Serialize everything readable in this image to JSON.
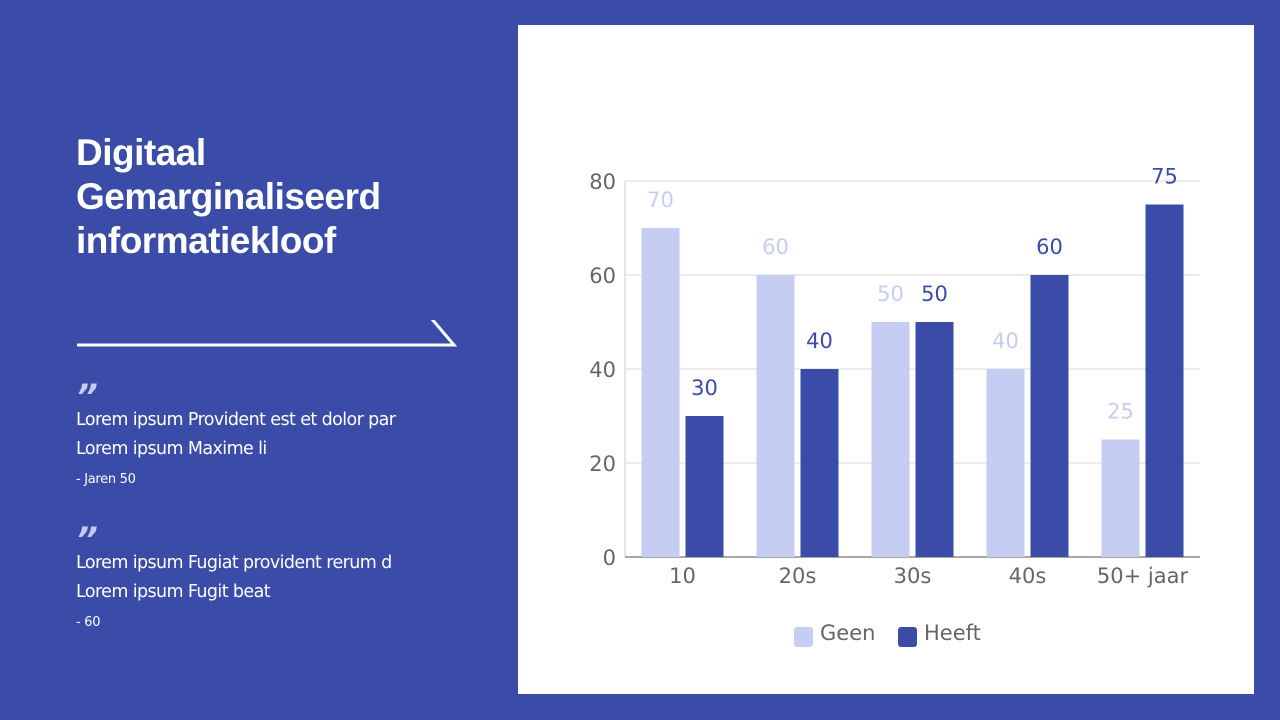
{
  "slide": {
    "title_lines": [
      "Digitaal",
      "Gemarginaliseerd",
      "informatiekloof"
    ],
    "quotes": [
      {
        "mark": "”",
        "lines": [
          "Lorem ipsum Provident est et dolor par",
          "Lorem ipsum Maxime li"
        ],
        "source": "- Jaren 50"
      },
      {
        "mark": "”",
        "lines": [
          "Lorem ipsum Fugiat provident rerum d",
          "Lorem ipsum Fugit beat"
        ],
        "source": "- 60"
      }
    ]
  },
  "colors": {
    "background": "#3a4ca8",
    "series_geen": "#c5cdf2",
    "series_heeft": "#3a4ca8",
    "axis_text": "#666666",
    "grid": "#d9d9d9"
  },
  "chart_data": {
    "type": "bar",
    "title": "",
    "xlabel": "",
    "ylabel": "",
    "categories": [
      "10",
      "20s",
      "30s",
      "40s",
      "50+ jaar"
    ],
    "series": [
      {
        "name": "Geen",
        "values": [
          70,
          60,
          50,
          40,
          25
        ],
        "color": "#c5cdf2"
      },
      {
        "name": "Heeft",
        "values": [
          30,
          40,
          50,
          60,
          75
        ],
        "color": "#3a4ca8"
      }
    ],
    "ylim": [
      0,
      80
    ],
    "yticks": [
      0,
      20,
      40,
      60,
      80
    ],
    "grid": true,
    "data_labels": true,
    "legend_position": "bottom"
  }
}
